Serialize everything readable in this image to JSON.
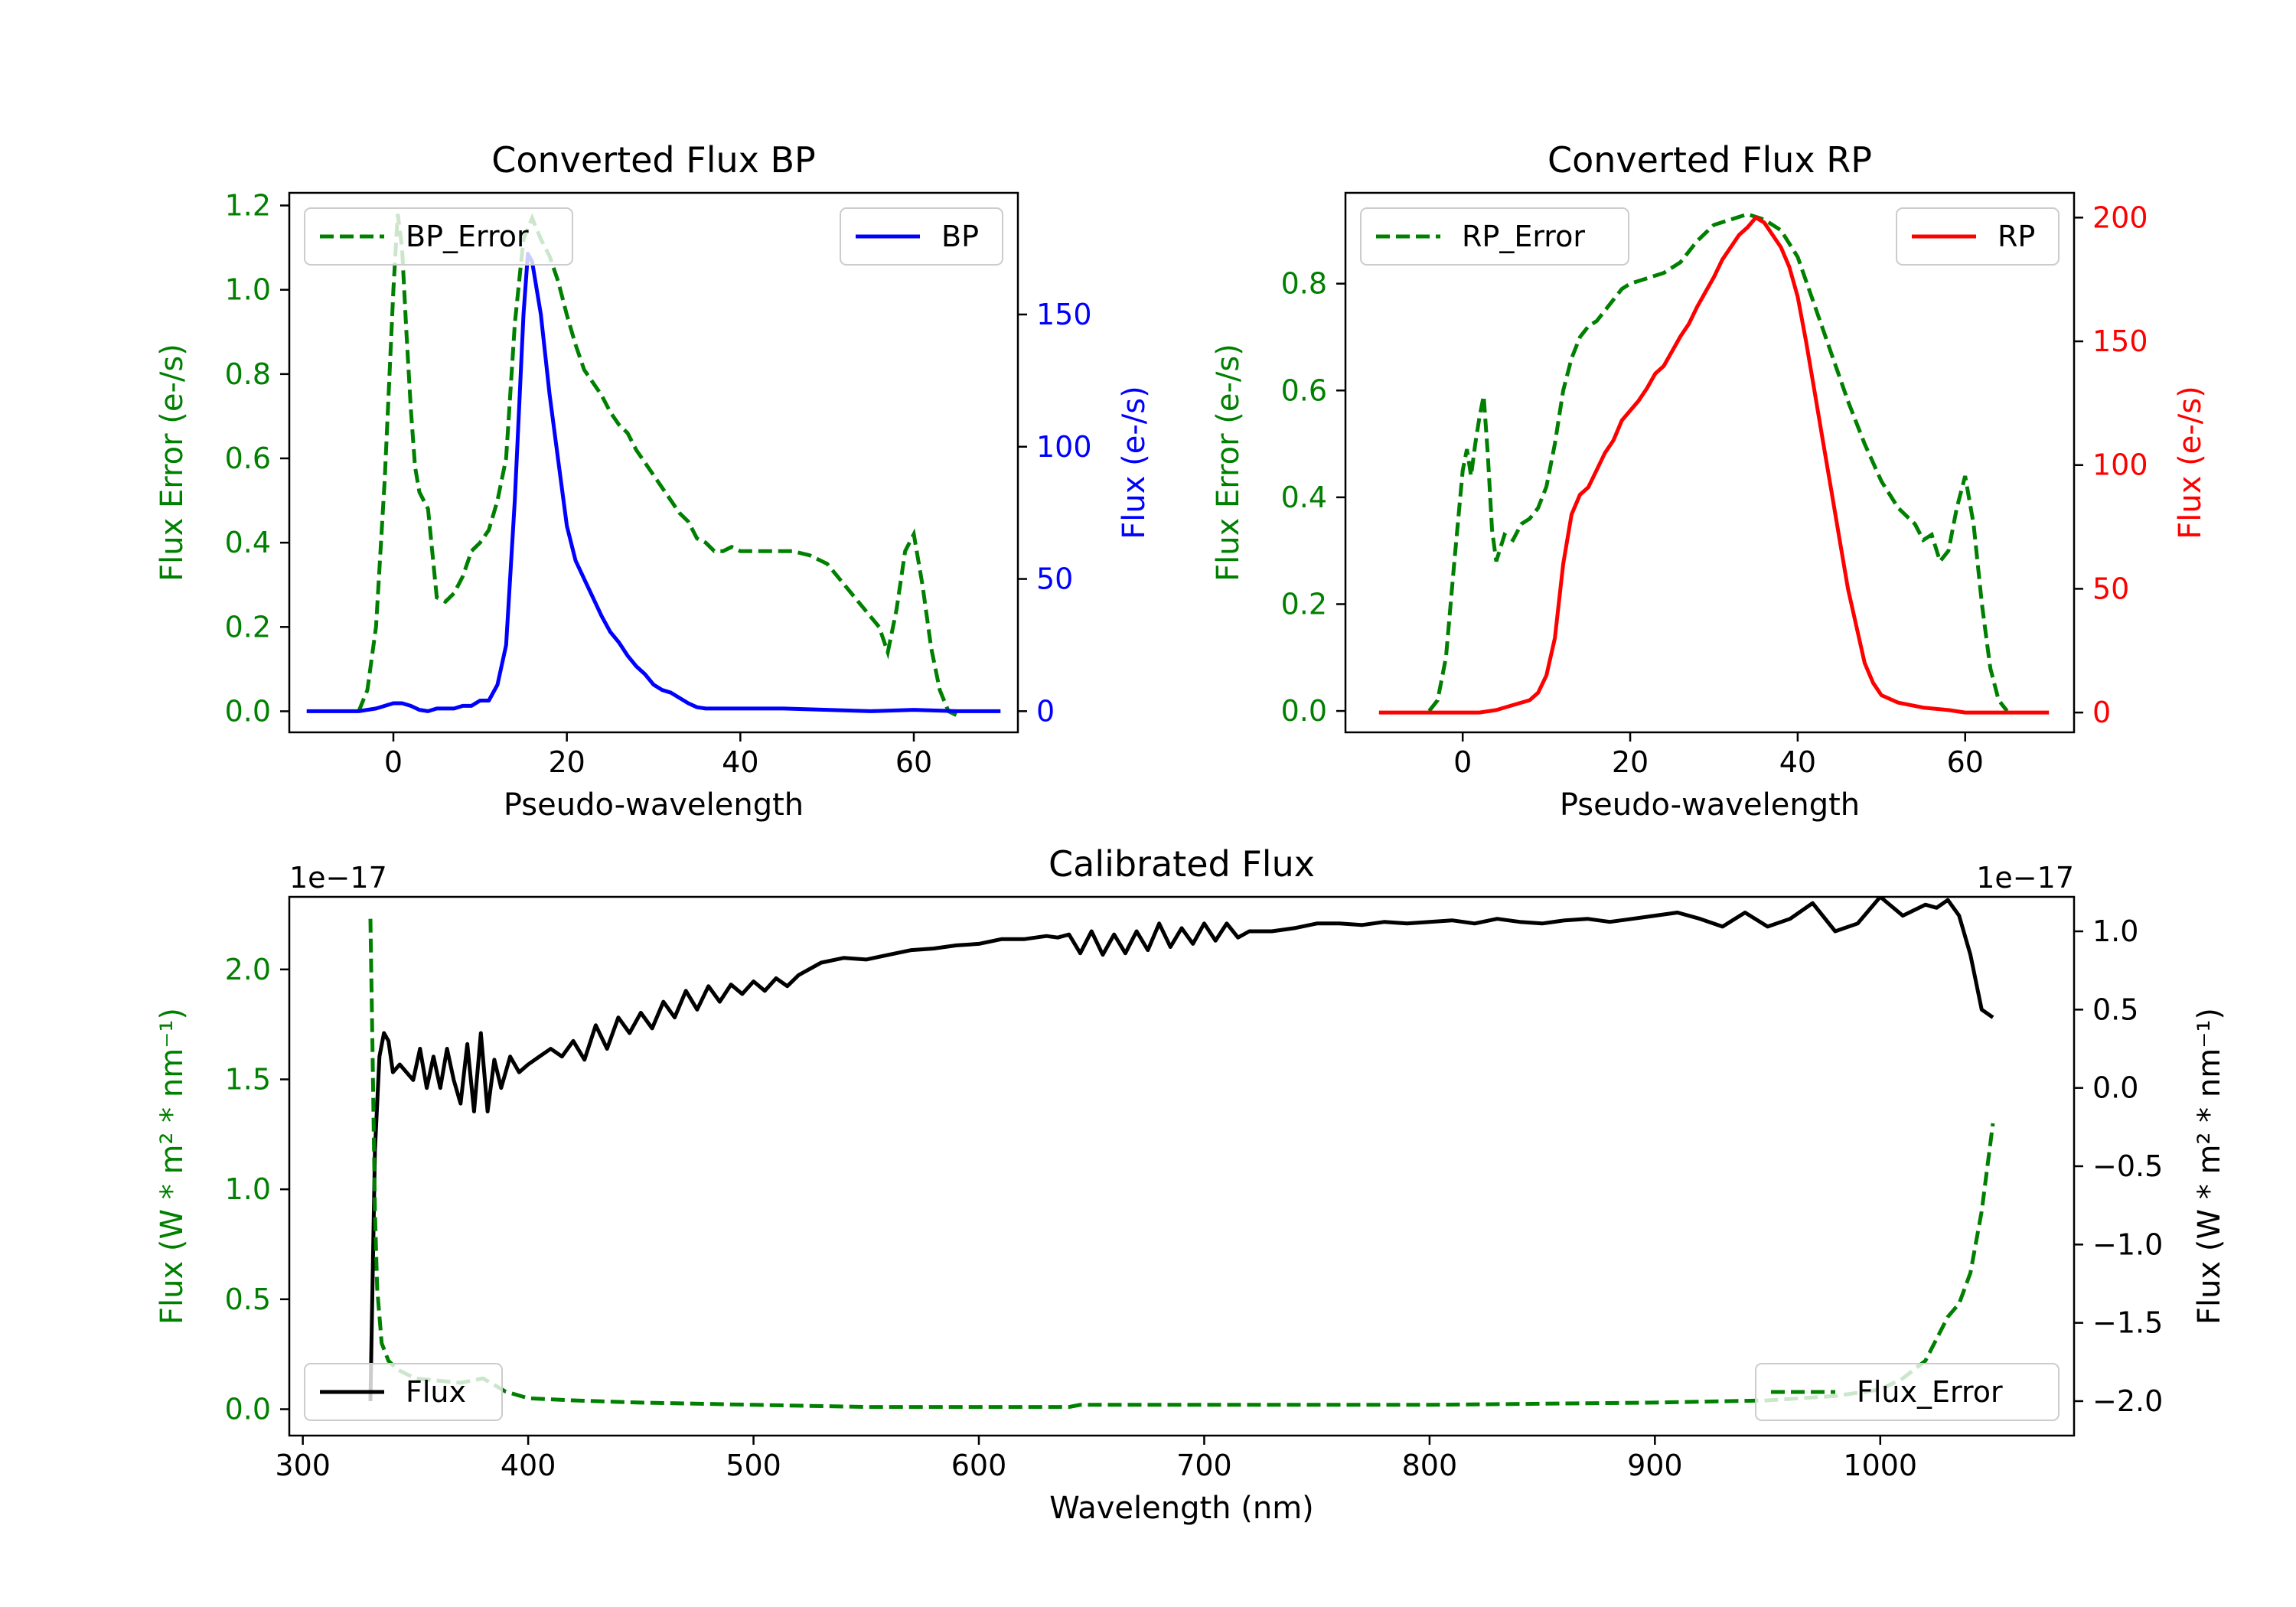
{
  "colors": {
    "green": "#008000",
    "blue": "#0000ff",
    "red": "#ff0000",
    "black": "#000000"
  },
  "chart_data": [
    {
      "id": "bp",
      "type": "line",
      "title": "Converted Flux BP",
      "xlabel": "Pseudo-wavelength",
      "ylabel_left": "Flux Error (e-/s)",
      "ylabel_right": "Flux (e-/s)",
      "xlim": [
        -12,
        72
      ],
      "ylim_left": [
        -0.05,
        1.23
      ],
      "ylim_right": [
        -8,
        196
      ],
      "xticks": [
        0,
        20,
        40,
        60
      ],
      "xtick_labels": [
        "0",
        "20",
        "40",
        "60"
      ],
      "yticks_left": [
        0.0,
        0.2,
        0.4,
        0.6,
        0.8,
        1.0,
        1.2
      ],
      "ytick_labels_left": [
        "0.0",
        "0.2",
        "0.4",
        "0.6",
        "0.8",
        "1.0",
        "1.2"
      ],
      "yticks_right": [
        0,
        50,
        100,
        150
      ],
      "ytick_labels_right": [
        "0",
        "50",
        "100",
        "150"
      ],
      "legend_left": {
        "label": "BP_Error",
        "loc": "upper-left"
      },
      "legend_right": {
        "label": "BP",
        "loc": "upper-right"
      },
      "series_error": {
        "name": "BP_Error",
        "color": "#008000",
        "style": "dashed",
        "x": [
          -4,
          -3,
          -2,
          -1,
          0,
          0.5,
          1,
          1.5,
          2,
          2.5,
          3,
          4,
          5,
          6,
          7,
          8,
          9,
          10,
          11,
          12,
          13,
          14,
          15,
          16,
          17,
          18,
          19,
          20,
          21,
          22,
          23,
          24,
          25,
          26,
          27,
          28,
          29,
          30,
          31,
          32,
          33,
          34,
          35,
          36,
          37,
          38,
          39,
          40,
          42,
          44,
          46,
          48,
          50,
          52,
          54,
          56,
          57,
          58,
          59,
          60,
          61,
          62,
          63,
          64,
          65
        ],
        "y": [
          0.0,
          0.05,
          0.2,
          0.55,
          1.0,
          1.18,
          1.1,
          0.9,
          0.72,
          0.58,
          0.52,
          0.48,
          0.27,
          0.26,
          0.28,
          0.32,
          0.38,
          0.4,
          0.43,
          0.5,
          0.6,
          0.92,
          1.12,
          1.17,
          1.12,
          1.08,
          1.02,
          0.94,
          0.87,
          0.81,
          0.78,
          0.75,
          0.71,
          0.68,
          0.66,
          0.62,
          0.59,
          0.56,
          0.53,
          0.5,
          0.47,
          0.45,
          0.41,
          0.4,
          0.38,
          0.38,
          0.39,
          0.38,
          0.38,
          0.38,
          0.38,
          0.37,
          0.35,
          0.3,
          0.25,
          0.2,
          0.14,
          0.24,
          0.38,
          0.42,
          0.3,
          0.15,
          0.05,
          0.0,
          -0.01
        ]
      },
      "series_flux": {
        "name": "BP",
        "color": "#0000ff",
        "style": "solid",
        "x": [
          -10,
          -6,
          -4,
          -2,
          0,
          1,
          2,
          3,
          4,
          5,
          6,
          7,
          8,
          9,
          10,
          11,
          12,
          13,
          14,
          15,
          15.5,
          16,
          17,
          18,
          19,
          20,
          21,
          22,
          23,
          24,
          25,
          26,
          27,
          28,
          29,
          30,
          31,
          32,
          33,
          34,
          35,
          36,
          37,
          38,
          40,
          42,
          45,
          50,
          55,
          60,
          65,
          70
        ],
        "y": [
          0,
          0,
          0,
          1,
          3,
          3,
          2,
          0.5,
          0,
          1,
          1,
          1,
          2,
          2,
          4,
          4,
          10,
          25,
          80,
          150,
          173,
          170,
          150,
          120,
          95,
          70,
          57,
          50,
          43,
          36,
          30,
          26,
          21,
          17,
          14,
          10,
          8,
          7,
          5,
          3,
          1.5,
          1,
          1,
          1,
          1,
          1,
          1,
          0.5,
          0,
          0.5,
          0,
          0
        ]
      }
    },
    {
      "id": "rp",
      "type": "line",
      "title": "Converted Flux RP",
      "xlabel": "Pseudo-wavelength",
      "ylabel_left": "Flux Error (e-/s)",
      "ylabel_right": "Flux (e-/s)",
      "xlim": [
        -14,
        73
      ],
      "ylim_left": [
        -0.04,
        0.97
      ],
      "ylim_right": [
        -8,
        210
      ],
      "xticks": [
        0,
        20,
        40,
        60
      ],
      "xtick_labels": [
        "0",
        "20",
        "40",
        "60"
      ],
      "yticks_left": [
        0.0,
        0.2,
        0.4,
        0.6,
        0.8
      ],
      "ytick_labels_left": [
        "0.0",
        "0.2",
        "0.4",
        "0.6",
        "0.8"
      ],
      "yticks_right": [
        0,
        50,
        100,
        150,
        200
      ],
      "ytick_labels_right": [
        "0",
        "50",
        "100",
        "150",
        "200"
      ],
      "legend_left": {
        "label": "RP_Error",
        "loc": "upper-left"
      },
      "legend_right": {
        "label": "RP",
        "loc": "upper-right"
      },
      "series_error": {
        "name": "RP_Error",
        "color": "#008000",
        "style": "dashed",
        "x": [
          -4,
          -3,
          -2,
          -1,
          0,
          0.5,
          1,
          1.5,
          2,
          2.5,
          3,
          3.5,
          4,
          5,
          6,
          7,
          8,
          9,
          10,
          11,
          12,
          13,
          14,
          15,
          16,
          17,
          18,
          19,
          20,
          22,
          24,
          26,
          28,
          30,
          32,
          34,
          36,
          38,
          40,
          42,
          44,
          46,
          48,
          50,
          52,
          54,
          55,
          56,
          57,
          58,
          59,
          60,
          61,
          62,
          63,
          64,
          65
        ],
        "y": [
          0.0,
          0.02,
          0.1,
          0.28,
          0.45,
          0.49,
          0.44,
          0.5,
          0.55,
          0.59,
          0.48,
          0.34,
          0.28,
          0.33,
          0.32,
          0.35,
          0.36,
          0.38,
          0.42,
          0.5,
          0.6,
          0.66,
          0.7,
          0.72,
          0.73,
          0.75,
          0.77,
          0.79,
          0.8,
          0.81,
          0.82,
          0.84,
          0.88,
          0.91,
          0.92,
          0.93,
          0.92,
          0.9,
          0.85,
          0.76,
          0.67,
          0.58,
          0.5,
          0.43,
          0.38,
          0.35,
          0.32,
          0.33,
          0.28,
          0.3,
          0.38,
          0.44,
          0.35,
          0.2,
          0.08,
          0.02,
          0.0
        ]
      },
      "series_flux": {
        "name": "RP",
        "color": "#ff0000",
        "style": "solid",
        "x": [
          -10,
          -5,
          0,
          2,
          4,
          6,
          8,
          9,
          10,
          11,
          12,
          13,
          14,
          15,
          16,
          17,
          18,
          19,
          20,
          21,
          22,
          23,
          24,
          25,
          26,
          27,
          28,
          29,
          30,
          31,
          32,
          33,
          34,
          35,
          36,
          37,
          38,
          39,
          40,
          41,
          42,
          43,
          44,
          45,
          46,
          47,
          48,
          49,
          50,
          52,
          55,
          58,
          60,
          65,
          70
        ],
        "y": [
          0,
          0,
          0,
          0,
          1,
          3,
          5,
          8,
          15,
          30,
          60,
          80,
          88,
          91,
          98,
          105,
          110,
          118,
          122,
          126,
          131,
          137,
          140,
          146,
          152,
          157,
          164,
          170,
          176,
          183,
          188,
          193,
          196,
          200,
          198,
          193,
          188,
          180,
          168,
          150,
          130,
          110,
          90,
          70,
          50,
          35,
          20,
          12,
          7,
          4,
          2,
          1,
          0,
          0,
          0
        ]
      }
    },
    {
      "id": "cal",
      "type": "line",
      "title": "Calibrated Flux",
      "xlabel": "Wavelength (nm)",
      "ylabel_left": "Flux (W * m² * nm⁻¹)",
      "ylabel_right": "Flux (W * m² * nm⁻¹)",
      "offset_left": "1e−17",
      "offset_right": "1e−17",
      "xlim": [
        294,
        1086
      ],
      "ylim_left": [
        -0.12,
        2.33
      ],
      "ylim_right": [
        -2.22,
        1.22
      ],
      "xticks": [
        300,
        400,
        500,
        600,
        700,
        800,
        900,
        1000
      ],
      "xtick_labels": [
        "300",
        "400",
        "500",
        "600",
        "700",
        "800",
        "900",
        "1000"
      ],
      "yticks_left": [
        0.0,
        0.5,
        1.0,
        1.5,
        2.0
      ],
      "ytick_labels_left": [
        "0.0",
        "0.5",
        "1.0",
        "1.5",
        "2.0"
      ],
      "yticks_right": [
        -2.0,
        -1.5,
        -1.0,
        -0.5,
        0.0,
        0.5,
        1.0
      ],
      "ytick_labels_right": [
        "−2.0",
        "−1.5",
        "−1.0",
        "−0.5",
        "0.0",
        "0.5",
        "1.0"
      ],
      "legend_left": {
        "label": "Flux",
        "loc": "lower-left"
      },
      "legend_right": {
        "label": "Flux_Error",
        "loc": "lower-right"
      },
      "series_error": {
        "name": "Flux_Error",
        "color": "#008000",
        "style": "dashed",
        "axis": "left",
        "x": [
          330,
          331,
          332,
          333,
          335,
          338,
          342,
          350,
          360,
          370,
          380,
          390,
          400,
          420,
          450,
          500,
          550,
          600,
          640,
          645,
          700,
          800,
          900,
          950,
          980,
          1000,
          1010,
          1020,
          1025,
          1030,
          1035,
          1040,
          1045,
          1050
        ],
        "y": [
          2.23,
          1.6,
          0.9,
          0.55,
          0.3,
          0.22,
          0.18,
          0.14,
          0.13,
          0.12,
          0.14,
          0.08,
          0.05,
          0.04,
          0.03,
          0.02,
          0.01,
          0.01,
          0.01,
          0.02,
          0.02,
          0.02,
          0.03,
          0.04,
          0.06,
          0.09,
          0.14,
          0.22,
          0.32,
          0.42,
          0.48,
          0.62,
          0.9,
          1.3
        ]
      },
      "series_flux": {
        "name": "Flux",
        "color": "#000000",
        "style": "solid",
        "axis": "right",
        "x": [
          330,
          332,
          334,
          336,
          338,
          340,
          343,
          346,
          349,
          352,
          355,
          358,
          361,
          364,
          367,
          370,
          373,
          376,
          379,
          382,
          385,
          388,
          392,
          396,
          400,
          405,
          410,
          415,
          420,
          425,
          430,
          435,
          440,
          445,
          450,
          455,
          460,
          465,
          470,
          475,
          480,
          485,
          490,
          495,
          500,
          505,
          510,
          515,
          520,
          530,
          540,
          550,
          560,
          570,
          580,
          590,
          600,
          610,
          620,
          630,
          635,
          640,
          645,
          650,
          655,
          660,
          665,
          670,
          675,
          680,
          685,
          690,
          695,
          700,
          705,
          710,
          715,
          720,
          730,
          740,
          750,
          760,
          770,
          780,
          790,
          800,
          810,
          820,
          830,
          840,
          850,
          860,
          870,
          880,
          890,
          900,
          910,
          920,
          930,
          940,
          950,
          960,
          970,
          980,
          990,
          1000,
          1010,
          1020,
          1025,
          1030,
          1035,
          1040,
          1045,
          1050
        ],
        "y": [
          -2.0,
          -0.4,
          0.2,
          0.35,
          0.3,
          0.1,
          0.15,
          0.1,
          0.05,
          0.25,
          0.0,
          0.2,
          0.0,
          0.25,
          0.05,
          -0.1,
          0.28,
          -0.15,
          0.35,
          -0.15,
          0.18,
          0.0,
          0.2,
          0.1,
          0.15,
          0.2,
          0.25,
          0.2,
          0.3,
          0.18,
          0.4,
          0.25,
          0.45,
          0.35,
          0.48,
          0.38,
          0.55,
          0.45,
          0.62,
          0.5,
          0.65,
          0.55,
          0.66,
          0.6,
          0.68,
          0.62,
          0.7,
          0.65,
          0.72,
          0.8,
          0.83,
          0.82,
          0.85,
          0.88,
          0.89,
          0.91,
          0.92,
          0.95,
          0.95,
          0.97,
          0.96,
          0.98,
          0.86,
          1.0,
          0.85,
          0.98,
          0.86,
          1.0,
          0.88,
          1.05,
          0.9,
          1.02,
          0.92,
          1.05,
          0.94,
          1.05,
          0.96,
          1.0,
          1.0,
          1.02,
          1.05,
          1.05,
          1.04,
          1.06,
          1.05,
          1.06,
          1.07,
          1.05,
          1.08,
          1.06,
          1.05,
          1.07,
          1.08,
          1.06,
          1.08,
          1.1,
          1.12,
          1.08,
          1.03,
          1.12,
          1.03,
          1.08,
          1.18,
          1.0,
          1.05,
          1.22,
          1.1,
          1.17,
          1.15,
          1.2,
          1.1,
          0.85,
          0.5,
          0.45
        ]
      }
    }
  ]
}
